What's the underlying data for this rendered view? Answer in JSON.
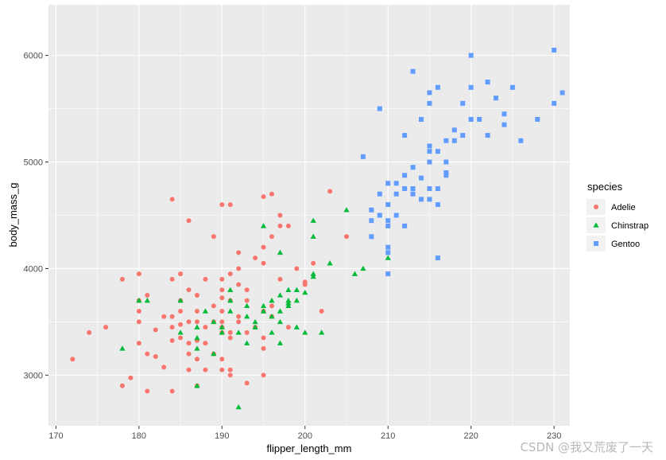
{
  "watermark": "CSDN @我又荒废了一天",
  "chart_data": {
    "type": "scatter",
    "title": "",
    "xlabel": "flipper_length_mm",
    "ylabel": "body_mass_g",
    "xlim": [
      169.1,
      231.9
    ],
    "ylim": [
      2525,
      6475
    ],
    "x_ticks": [
      170,
      180,
      190,
      200,
      210,
      220,
      230
    ],
    "y_ticks": [
      3000,
      4000,
      5000,
      6000
    ],
    "grid": true,
    "legend": {
      "title": "species",
      "position": "right"
    },
    "colors": {
      "panel": "#EBEBEB",
      "grid": "#FFFFFF",
      "Adelie": "#F8766D",
      "Chinstrap": "#00BA38",
      "Gentoo": "#619CFF"
    },
    "series": [
      {
        "name": "Adelie",
        "shape": "circle",
        "points": [
          [
            172,
            3150
          ],
          [
            174,
            3400
          ],
          [
            176,
            3450
          ],
          [
            178,
            3900
          ],
          [
            178,
            2900
          ],
          [
            179,
            2975
          ],
          [
            180,
            3950
          ],
          [
            180,
            3700
          ],
          [
            180,
            3600
          ],
          [
            180,
            3500
          ],
          [
            180,
            3300
          ],
          [
            181,
            3200
          ],
          [
            181,
            2850
          ],
          [
            181,
            3750
          ],
          [
            182,
            3425
          ],
          [
            182,
            3175
          ],
          [
            183,
            3550
          ],
          [
            183,
            3075
          ],
          [
            184,
            4650
          ],
          [
            184,
            3900
          ],
          [
            184,
            3450
          ],
          [
            184,
            3325
          ],
          [
            184,
            3550
          ],
          [
            184,
            2850
          ],
          [
            185,
            3700
          ],
          [
            185,
            3950
          ],
          [
            185,
            3350
          ],
          [
            185,
            3600
          ],
          [
            185,
            3475
          ],
          [
            186,
            3500
          ],
          [
            186,
            3300
          ],
          [
            186,
            3050
          ],
          [
            186,
            4450
          ],
          [
            186,
            3800
          ],
          [
            186,
            3200
          ],
          [
            187,
            3150
          ],
          [
            187,
            3500
          ],
          [
            187,
            3750
          ],
          [
            187,
            3325
          ],
          [
            187,
            2900
          ],
          [
            187,
            3600
          ],
          [
            188,
            3300
          ],
          [
            188,
            3450
          ],
          [
            188,
            3900
          ],
          [
            188,
            3050
          ],
          [
            189,
            4300
          ],
          [
            189,
            3200
          ],
          [
            189,
            3650
          ],
          [
            189,
            3500
          ],
          [
            190,
            3150
          ],
          [
            190,
            3450
          ],
          [
            190,
            3600
          ],
          [
            190,
            3800
          ],
          [
            190,
            3900
          ],
          [
            190,
            3400
          ],
          [
            190,
            3050
          ],
          [
            190,
            3725
          ],
          [
            190,
            3500
          ],
          [
            190,
            4600
          ],
          [
            191,
            3000
          ],
          [
            191,
            3700
          ],
          [
            191,
            3950
          ],
          [
            191,
            3400
          ],
          [
            191,
            4600
          ],
          [
            191,
            3350
          ],
          [
            191,
            3050
          ],
          [
            192,
            3550
          ],
          [
            192,
            4150
          ],
          [
            192,
            3850
          ],
          [
            192,
            4000
          ],
          [
            192,
            3500
          ],
          [
            193,
            2925
          ],
          [
            193,
            3400
          ],
          [
            193,
            3700
          ],
          [
            193,
            3800
          ],
          [
            194,
            3450
          ],
          [
            194,
            4100
          ],
          [
            195,
            3000
          ],
          [
            195,
            4050
          ],
          [
            195,
            3600
          ],
          [
            195,
            4200
          ],
          [
            195,
            3350
          ],
          [
            195,
            3250
          ],
          [
            195,
            4675
          ],
          [
            196,
            4700
          ],
          [
            196,
            3650
          ],
          [
            196,
            4300
          ],
          [
            196,
            3550
          ],
          [
            197,
            4400
          ],
          [
            197,
            3900
          ],
          [
            197,
            4500
          ],
          [
            198,
            4400
          ],
          [
            198,
            3450
          ],
          [
            199,
            4000
          ],
          [
            200,
            3850
          ],
          [
            200,
            3875
          ],
          [
            201,
            4050
          ],
          [
            202,
            3600
          ],
          [
            203,
            4725
          ],
          [
            205,
            4300
          ]
        ]
      },
      {
        "name": "Chinstrap",
        "shape": "triangle",
        "points": [
          [
            178,
            3250
          ],
          [
            180,
            3700
          ],
          [
            181,
            3700
          ],
          [
            185,
            3700
          ],
          [
            185,
            3400
          ],
          [
            187,
            3250
          ],
          [
            187,
            2900
          ],
          [
            187,
            3350
          ],
          [
            187,
            3450
          ],
          [
            188,
            3600
          ],
          [
            189,
            3500
          ],
          [
            189,
            3200
          ],
          [
            190,
            3400
          ],
          [
            190,
            3450
          ],
          [
            191,
            3700
          ],
          [
            191,
            3800
          ],
          [
            191,
            3600
          ],
          [
            192,
            2700
          ],
          [
            192,
            3400
          ],
          [
            193,
            3550
          ],
          [
            193,
            3300
          ],
          [
            193,
            3650
          ],
          [
            194,
            3450
          ],
          [
            194,
            3500
          ],
          [
            195,
            3650
          ],
          [
            195,
            3600
          ],
          [
            195,
            4400
          ],
          [
            196,
            3400
          ],
          [
            196,
            3700
          ],
          [
            196,
            3550
          ],
          [
            197,
            3600
          ],
          [
            197,
            3300
          ],
          [
            197,
            3750
          ],
          [
            197,
            3500
          ],
          [
            197,
            4150
          ],
          [
            198,
            3675
          ],
          [
            198,
            3650
          ],
          [
            198,
            3800
          ],
          [
            198,
            3700
          ],
          [
            199,
            3450
          ],
          [
            199,
            3700
          ],
          [
            199,
            3800
          ],
          [
            200,
            3775
          ],
          [
            200,
            3400
          ],
          [
            201,
            4450
          ],
          [
            201,
            4300
          ],
          [
            201,
            3925
          ],
          [
            201,
            3950
          ],
          [
            202,
            3400
          ],
          [
            203,
            4050
          ],
          [
            205,
            4550
          ],
          [
            206,
            3950
          ],
          [
            207,
            4000
          ],
          [
            210,
            4100
          ]
        ]
      },
      {
        "name": "Gentoo",
        "shape": "square",
        "points": [
          [
            207,
            5050
          ],
          [
            208,
            4450
          ],
          [
            208,
            4300
          ],
          [
            208,
            4550
          ],
          [
            209,
            4700
          ],
          [
            209,
            5500
          ],
          [
            209,
            4500
          ],
          [
            210,
            4600
          ],
          [
            210,
            4200
          ],
          [
            210,
            4450
          ],
          [
            210,
            4800
          ],
          [
            210,
            4150
          ],
          [
            210,
            4400
          ],
          [
            210,
            3950
          ],
          [
            211,
            4800
          ],
          [
            211,
            4500
          ],
          [
            211,
            4700
          ],
          [
            212,
            4875
          ],
          [
            212,
            4750
          ],
          [
            212,
            4400
          ],
          [
            212,
            5250
          ],
          [
            213,
            4950
          ],
          [
            213,
            4700
          ],
          [
            213,
            4750
          ],
          [
            213,
            5850
          ],
          [
            214,
            4850
          ],
          [
            214,
            5400
          ],
          [
            214,
            4650
          ],
          [
            215,
            4650
          ],
          [
            215,
            5000
          ],
          [
            215,
            5150
          ],
          [
            215,
            5550
          ],
          [
            215,
            5650
          ],
          [
            215,
            4750
          ],
          [
            215,
            5100
          ],
          [
            216,
            4750
          ],
          [
            216,
            5100
          ],
          [
            216,
            4600
          ],
          [
            216,
            4100
          ],
          [
            216,
            5700
          ],
          [
            217,
            4900
          ],
          [
            217,
            5000
          ],
          [
            217,
            4875
          ],
          [
            217,
            5200
          ],
          [
            218,
            5300
          ],
          [
            218,
            5200
          ],
          [
            219,
            5550
          ],
          [
            219,
            5250
          ],
          [
            220,
            6000
          ],
          [
            220,
            5700
          ],
          [
            220,
            5400
          ],
          [
            221,
            5400
          ],
          [
            222,
            5250
          ],
          [
            222,
            5750
          ],
          [
            223,
            5600
          ],
          [
            224,
            5450
          ],
          [
            224,
            5350
          ],
          [
            225,
            5700
          ],
          [
            226,
            5200
          ],
          [
            228,
            5400
          ],
          [
            230,
            6050
          ],
          [
            230,
            5550
          ],
          [
            231,
            5650
          ]
        ]
      }
    ]
  }
}
